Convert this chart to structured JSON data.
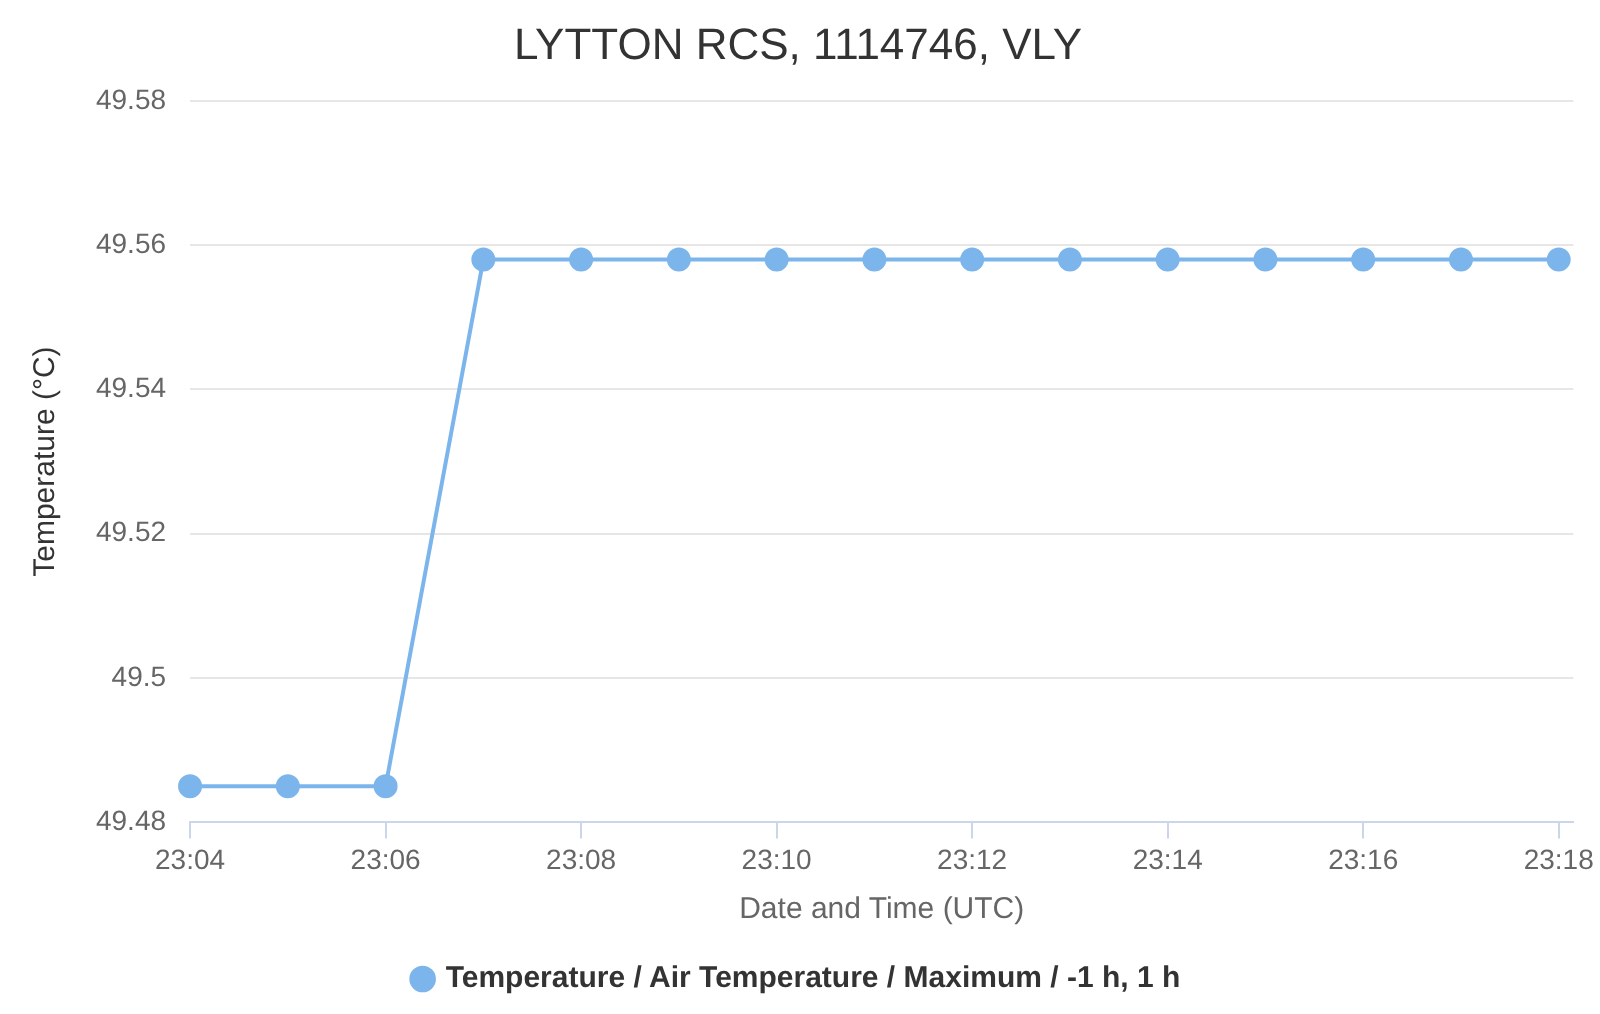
{
  "chart_data": {
    "type": "line",
    "title": "LYTTON RCS, 1114746, VLY",
    "xlabel": "Date and Time (UTC)",
    "ylabel": "Temperature (°C)",
    "x": [
      23.066667,
      23.083333,
      23.1,
      23.116667,
      23.133333,
      23.15,
      23.166667,
      23.183333,
      23.2,
      23.216667,
      23.233333,
      23.25,
      23.266667,
      23.283333,
      23.3
    ],
    "series": [
      {
        "name": "Temperature / Air Temperature / Maximum / -1 h, 1 h",
        "color": "#7cb5ec",
        "values": [
          49.485,
          49.485,
          49.485,
          49.558,
          49.558,
          49.558,
          49.558,
          49.558,
          49.558,
          49.558,
          49.558,
          49.558,
          49.558,
          49.558,
          49.558
        ]
      }
    ],
    "xlim": [
      23.066667,
      23.3025
    ],
    "xticks": [
      {
        "value": 23.066667,
        "label": "23:04"
      },
      {
        "value": 23.1,
        "label": "23:06"
      },
      {
        "value": 23.133333,
        "label": "23:08"
      },
      {
        "value": 23.166667,
        "label": "23:10"
      },
      {
        "value": 23.2,
        "label": "23:12"
      },
      {
        "value": 23.233333,
        "label": "23:14"
      },
      {
        "value": 23.266667,
        "label": "23:16"
      },
      {
        "value": 23.3,
        "label": "23:18"
      }
    ],
    "ylim": [
      49.48,
      49.58
    ],
    "yticks": [
      49.48,
      {
        "value": 49.5,
        "label": "49.5"
      },
      49.52,
      49.54,
      49.56,
      49.58
    ],
    "grid": "y",
    "legend": "bottom",
    "marker": "circle",
    "line_style": "solid"
  }
}
